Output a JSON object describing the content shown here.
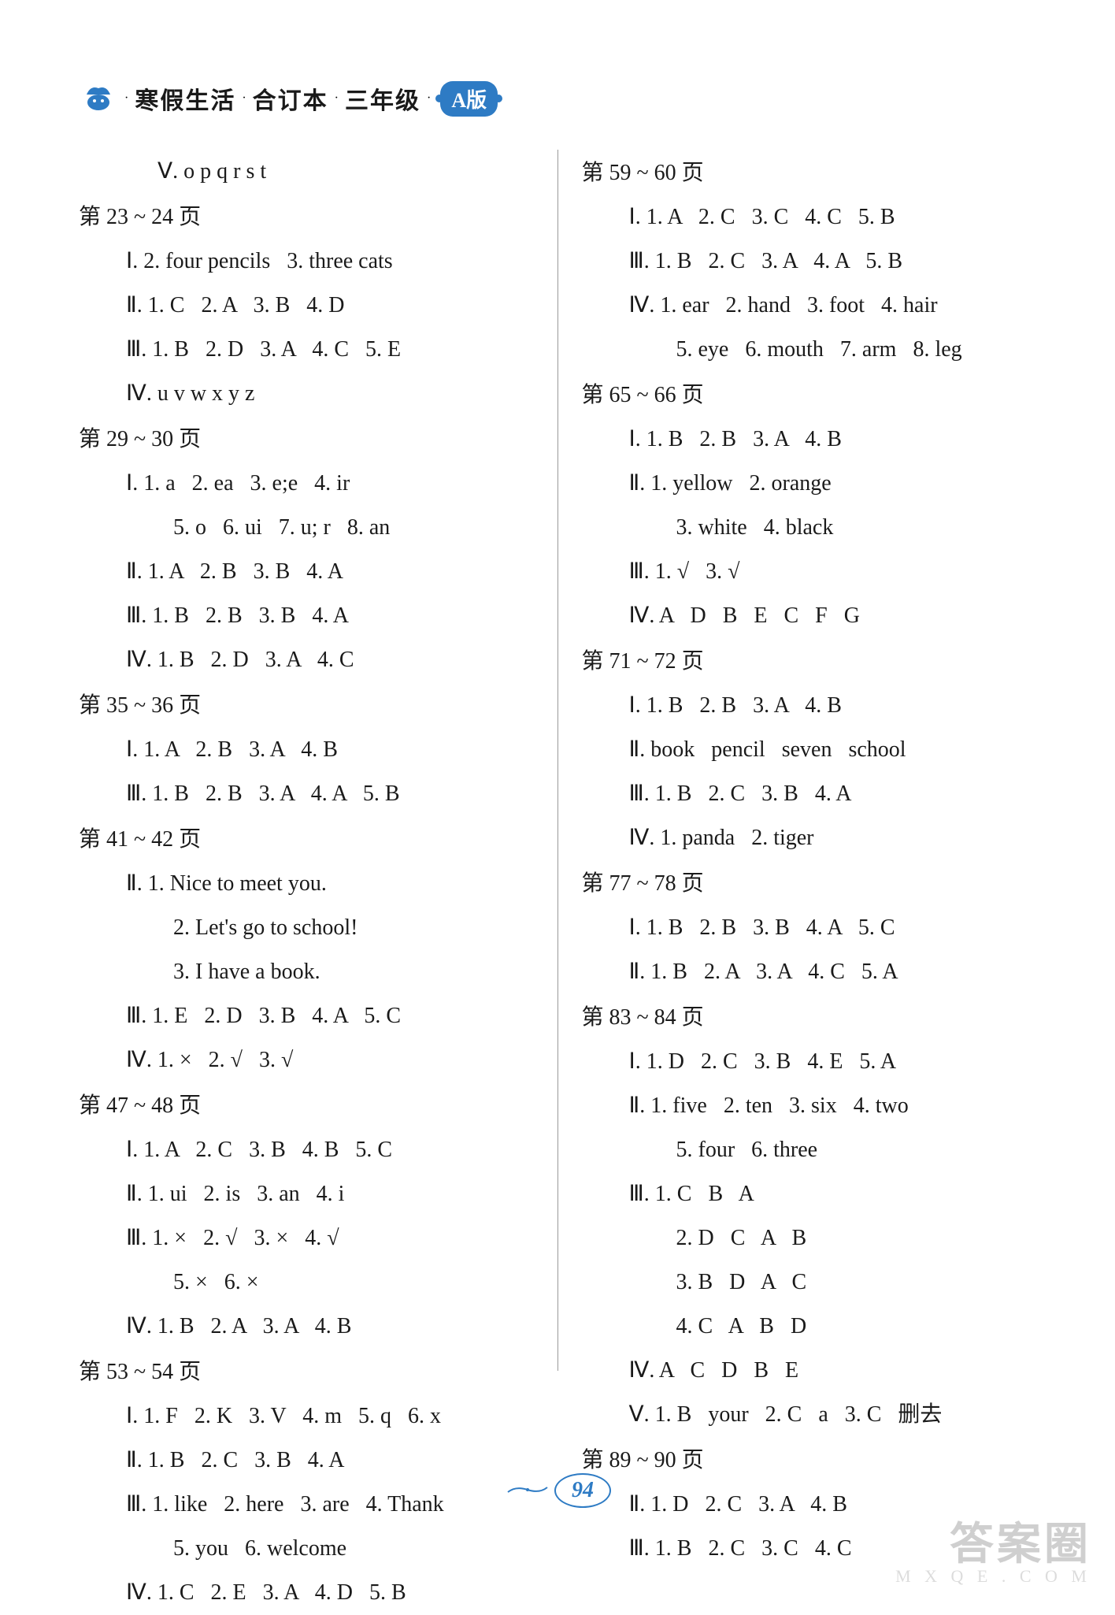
{
  "header": {
    "title_parts": [
      "寒假生活",
      "合订本",
      "三年级"
    ],
    "dot": "·",
    "badge": "A版",
    "badge_bg": "#2e7bc4",
    "badge_fg": "#ffffff",
    "icon_color": "#2e7bc4"
  },
  "page_number": "94",
  "page_number_color": "#2e7bc4",
  "watermark": {
    "main": "答案圈",
    "sub": "M X Q E . C O M"
  },
  "text_color": "#1a1a1a",
  "font_size_pt": 21,
  "left": [
    {
      "t": "first-indent",
      "v": "Ⅴ. o p q r s t"
    },
    {
      "t": "head",
      "v": "第 23 ~ 24 页"
    },
    {
      "t": "line",
      "v": "Ⅰ. 2. four pencils   3. three cats"
    },
    {
      "t": "line",
      "v": "Ⅱ. 1. C   2. A   3. B   4. D"
    },
    {
      "t": "line",
      "v": "Ⅲ. 1. B   2. D   3. A   4. C   5. E"
    },
    {
      "t": "line",
      "v": "Ⅳ. u v w x y z"
    },
    {
      "t": "head",
      "v": "第 29 ~ 30 页"
    },
    {
      "t": "line",
      "v": "Ⅰ. 1. a   2. ea   3. e;e   4. ir"
    },
    {
      "t": "cont",
      "v": "5. o   6. ui   7. u; r   8. an"
    },
    {
      "t": "line",
      "v": "Ⅱ. 1. A   2. B   3. B   4. A"
    },
    {
      "t": "line",
      "v": "Ⅲ. 1. B   2. B   3. B   4. A"
    },
    {
      "t": "line",
      "v": "Ⅳ. 1. B   2. D   3. A   4. C"
    },
    {
      "t": "head",
      "v": "第 35 ~ 36 页"
    },
    {
      "t": "line",
      "v": "Ⅰ. 1. A   2. B   3. A   4. B"
    },
    {
      "t": "line",
      "v": "Ⅲ. 1. B   2. B   3. A   4. A   5. B"
    },
    {
      "t": "head",
      "v": "第 41 ~ 42 页"
    },
    {
      "t": "line",
      "v": "Ⅱ. 1. Nice to meet you."
    },
    {
      "t": "cont",
      "v": "2. Let's go to school!"
    },
    {
      "t": "cont",
      "v": "3. I have a book."
    },
    {
      "t": "line",
      "v": "Ⅲ. 1. E   2. D   3. B   4. A   5. C"
    },
    {
      "t": "line",
      "v": "Ⅳ. 1. ×   2. √   3. √"
    },
    {
      "t": "head",
      "v": "第 47 ~ 48 页"
    },
    {
      "t": "line",
      "v": "Ⅰ. 1. A   2. C   3. B   4. B   5. C"
    },
    {
      "t": "line",
      "v": "Ⅱ. 1. ui   2. is   3. an   4. i"
    },
    {
      "t": "line",
      "v": "Ⅲ. 1. ×   2. √   3. ×   4. √"
    },
    {
      "t": "cont",
      "v": "5. ×   6. ×"
    },
    {
      "t": "line",
      "v": "Ⅳ. 1. B   2. A   3. A   4. B"
    },
    {
      "t": "head",
      "v": "第 53 ~ 54 页"
    },
    {
      "t": "line",
      "v": "Ⅰ. 1. F   2. K   3. V   4. m   5. q   6. x"
    },
    {
      "t": "line",
      "v": "Ⅱ. 1. B   2. C   3. B   4. A"
    },
    {
      "t": "line",
      "v": "Ⅲ. 1. like   2. here   3. are   4. Thank"
    },
    {
      "t": "cont",
      "v": "5. you   6. welcome"
    },
    {
      "t": "line",
      "v": "Ⅳ. 1. C   2. E   3. A   4. D   5. B"
    }
  ],
  "right": [
    {
      "t": "head",
      "v": "第 59 ~ 60 页"
    },
    {
      "t": "line",
      "v": "Ⅰ. 1. A   2. C   3. C   4. C   5. B"
    },
    {
      "t": "line",
      "v": "Ⅲ. 1. B   2. C   3. A   4. A   5. B"
    },
    {
      "t": "line",
      "v": "Ⅳ. 1. ear   2. hand   3. foot   4. hair"
    },
    {
      "t": "cont",
      "v": "5. eye   6. mouth   7. arm   8. leg"
    },
    {
      "t": "head",
      "v": "第 65 ~ 66 页"
    },
    {
      "t": "line",
      "v": "Ⅰ. 1. B   2. B   3. A   4. B"
    },
    {
      "t": "line",
      "v": "Ⅱ. 1. yellow   2. orange"
    },
    {
      "t": "cont",
      "v": "3. white   4. black"
    },
    {
      "t": "line",
      "v": "Ⅲ. 1. √   3. √"
    },
    {
      "t": "line",
      "v": "Ⅳ. A   D   B   E   C   F   G"
    },
    {
      "t": "head",
      "v": "第 71 ~ 72 页"
    },
    {
      "t": "line",
      "v": "Ⅰ. 1. B   2. B   3. A   4. B"
    },
    {
      "t": "line",
      "v": "Ⅱ. book   pencil   seven   school"
    },
    {
      "t": "line",
      "v": "Ⅲ. 1. B   2. C   3. B   4. A"
    },
    {
      "t": "line",
      "v": "Ⅳ. 1. panda   2. tiger"
    },
    {
      "t": "head",
      "v": "第 77 ~ 78 页"
    },
    {
      "t": "line",
      "v": "Ⅰ. 1. B   2. B   3. B   4. A   5. C"
    },
    {
      "t": "line",
      "v": "Ⅱ. 1. B   2. A   3. A   4. C   5. A"
    },
    {
      "t": "head",
      "v": "第 83 ~ 84 页"
    },
    {
      "t": "line",
      "v": "Ⅰ. 1. D   2. C   3. B   4. E   5. A"
    },
    {
      "t": "line",
      "v": "Ⅱ. 1. five   2. ten   3. six   4. two"
    },
    {
      "t": "cont",
      "v": "5. four   6. three"
    },
    {
      "t": "line",
      "v": "Ⅲ. 1. C   B   A"
    },
    {
      "t": "cont",
      "v": "2. D   C   A   B"
    },
    {
      "t": "cont",
      "v": "3. B   D   A   C"
    },
    {
      "t": "cont",
      "v": "4. C   A   B   D"
    },
    {
      "t": "line",
      "v": "Ⅳ. A   C   D   B   E"
    },
    {
      "t": "line",
      "v": "Ⅴ. 1. B   your   2. C   a   3. C   删去"
    },
    {
      "t": "head",
      "v": "第 89 ~ 90 页"
    },
    {
      "t": "line",
      "v": "Ⅱ. 1. D   2. C   3. A   4. B"
    },
    {
      "t": "line",
      "v": "Ⅲ. 1. B   2. C   3. C   4. C"
    }
  ]
}
